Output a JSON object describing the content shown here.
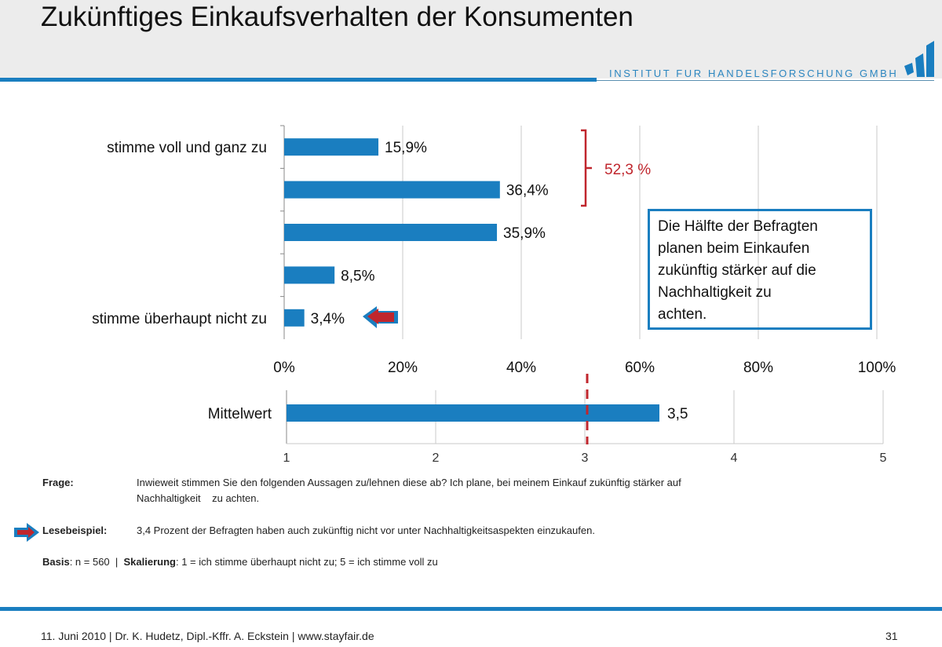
{
  "header": {
    "title": "Zukünftiges Einkaufsverhalten der Konsumenten",
    "institute": "INSTITUT FUR HANDELSFORSCHUNG GMBH"
  },
  "chart_data": [
    {
      "type": "bar",
      "orientation": "horizontal",
      "categories": [
        "stimme voll und ganz zu",
        "",
        "",
        "",
        "stimme überhaupt nicht zu"
      ],
      "values": [
        15.9,
        36.4,
        35.9,
        8.5,
        3.4
      ],
      "data_labels": [
        "15,9%",
        "36,4%",
        "35,9%",
        "8,5%",
        "3,4%"
      ],
      "xlim": [
        0,
        100
      ],
      "xticks": [
        "0%",
        "20%",
        "40%",
        "60%",
        "80%",
        "100%"
      ],
      "grid": true,
      "bar_color": "#1a7ec0",
      "annotation": {
        "bracket_label": "52,3 %",
        "color": "#c0262d"
      }
    },
    {
      "type": "bar",
      "orientation": "horizontal",
      "categories": [
        "Mittelwert"
      ],
      "values": [
        3.5
      ],
      "data_labels": [
        "3,5"
      ],
      "xlim": [
        1,
        5
      ],
      "xticks": [
        "1",
        "2",
        "3",
        "4",
        "5"
      ],
      "grid": true,
      "reference_line": 3,
      "reference_color": "#c0262d"
    }
  ],
  "callout": [
    "Die Hälfte der Befragten",
    "planen beim Einkaufen",
    "zukünftig stärker auf  die",
    "Nachhaltigkeit zu",
    "achten."
  ],
  "notes": {
    "frage_label": "Frage:",
    "frage_text": "Inwieweit stimmen Sie den folgenden Aussagen zu/lehnen diese ab? Ich plane, bei meinem Einkauf zukünftig stärker auf",
    "frage_text2": "Nachhaltigkeit    zu achten.",
    "lese_label": "Lesebeispiel:",
    "lese_text": "3,4 Prozent der Befragten haben auch zukünftig nicht vor unter Nachhaltigkeitsaspekten einzukaufen.",
    "basis_label": "Basis",
    "basis_text": ": n = 560  |  ",
    "skal_label": "Skalierung",
    "skal_text": ": 1 = ich stimme überhaupt nicht zu; 5 = ich stimme voll zu"
  },
  "footer": {
    "text": "11. Juni 2010 | Dr. K. Hudetz, Dipl.-Kffr. A. Eckstein | www.stayfair.de",
    "page": "31"
  }
}
